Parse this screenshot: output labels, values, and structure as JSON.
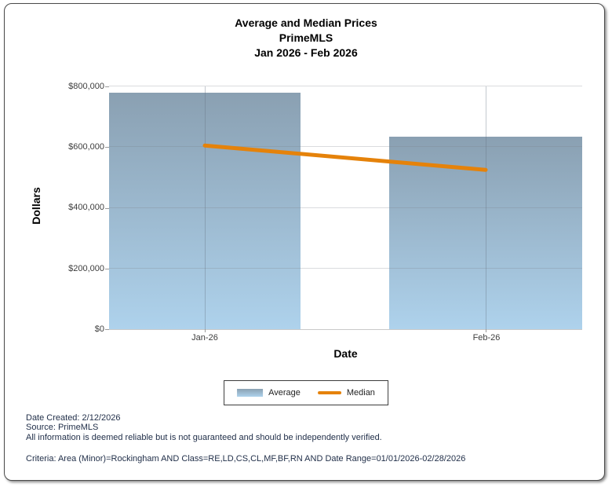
{
  "chart_data": {
    "type": "bar",
    "title_lines": [
      "Average and Median Prices",
      "PrimeMLS",
      "Jan 2026 - Feb 2026"
    ],
    "categories": [
      "Jan-26",
      "Feb-26"
    ],
    "series": [
      {
        "name": "Average",
        "type": "bar",
        "values": [
          780000,
          635000
        ]
      },
      {
        "name": "Median",
        "type": "line",
        "values": [
          605000,
          525000
        ]
      }
    ],
    "xlabel": "Date",
    "ylabel": "Dollars",
    "ylim": [
      0,
      800000
    ],
    "ytick_interval": 200000,
    "ytick_labels": [
      "$0",
      "$200,000",
      "$400,000",
      "$600,000",
      "$800,000"
    ],
    "grid": true,
    "legend_position": "bottom-center",
    "colors": {
      "bar_gradient_top": "#8AA0B2",
      "bar_gradient_bottom": "#AED2EC",
      "median_line": "#E5820A"
    }
  },
  "footer": {
    "date_created": "Date Created: 2/12/2026",
    "source": "Source: PrimeMLS",
    "disclaimer": "All information is deemed reliable but is not guaranteed and should be independently verified.",
    "criteria": "Criteria: Area (Minor)=Rockingham AND Class=RE,LD,CS,CL,MF,BF,RN AND Date Range=01/01/2026-02/28/2026"
  }
}
